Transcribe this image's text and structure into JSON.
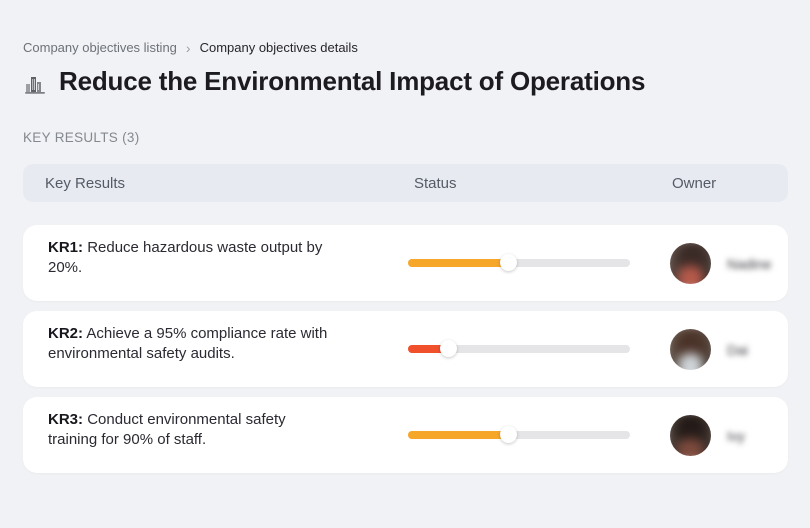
{
  "breadcrumb": {
    "items": [
      {
        "label": "Company objectives listing"
      },
      {
        "label": "Company objectives details"
      }
    ],
    "separator": "›"
  },
  "header": {
    "icon": "cityscape-icon",
    "title": "Reduce the Environmental Impact of Operations"
  },
  "section": {
    "label": "KEY RESULTS (3)"
  },
  "table": {
    "columns": [
      "Key Results",
      "Status",
      "Owner"
    ],
    "rows": [
      {
        "kr_label": "KR1:",
        "description": "Reduce hazardous waste output by 20%.",
        "progress_percent": 45,
        "progress_color": "#f6a629",
        "owner": {
          "name": "Nadine"
        }
      },
      {
        "kr_label": "KR2:",
        "description": "Achieve a 95% compliance rate with environmental safety audits.",
        "progress_percent": 18,
        "progress_color": "#f1502c",
        "owner": {
          "name": "Dai"
        }
      },
      {
        "kr_label": "KR3:",
        "description": "Conduct environmental safety training for 90% of staff.",
        "progress_percent": 45,
        "progress_color": "#f6a629",
        "owner": {
          "name": "Ivy"
        }
      }
    ]
  },
  "colors": {
    "page_background": "#f1f2f5",
    "table_header_background": "#e7eaf0",
    "card_background": "#ffffff",
    "track_gray": "#e5e5e8",
    "orange": "#f6a629",
    "red": "#f1502c"
  }
}
